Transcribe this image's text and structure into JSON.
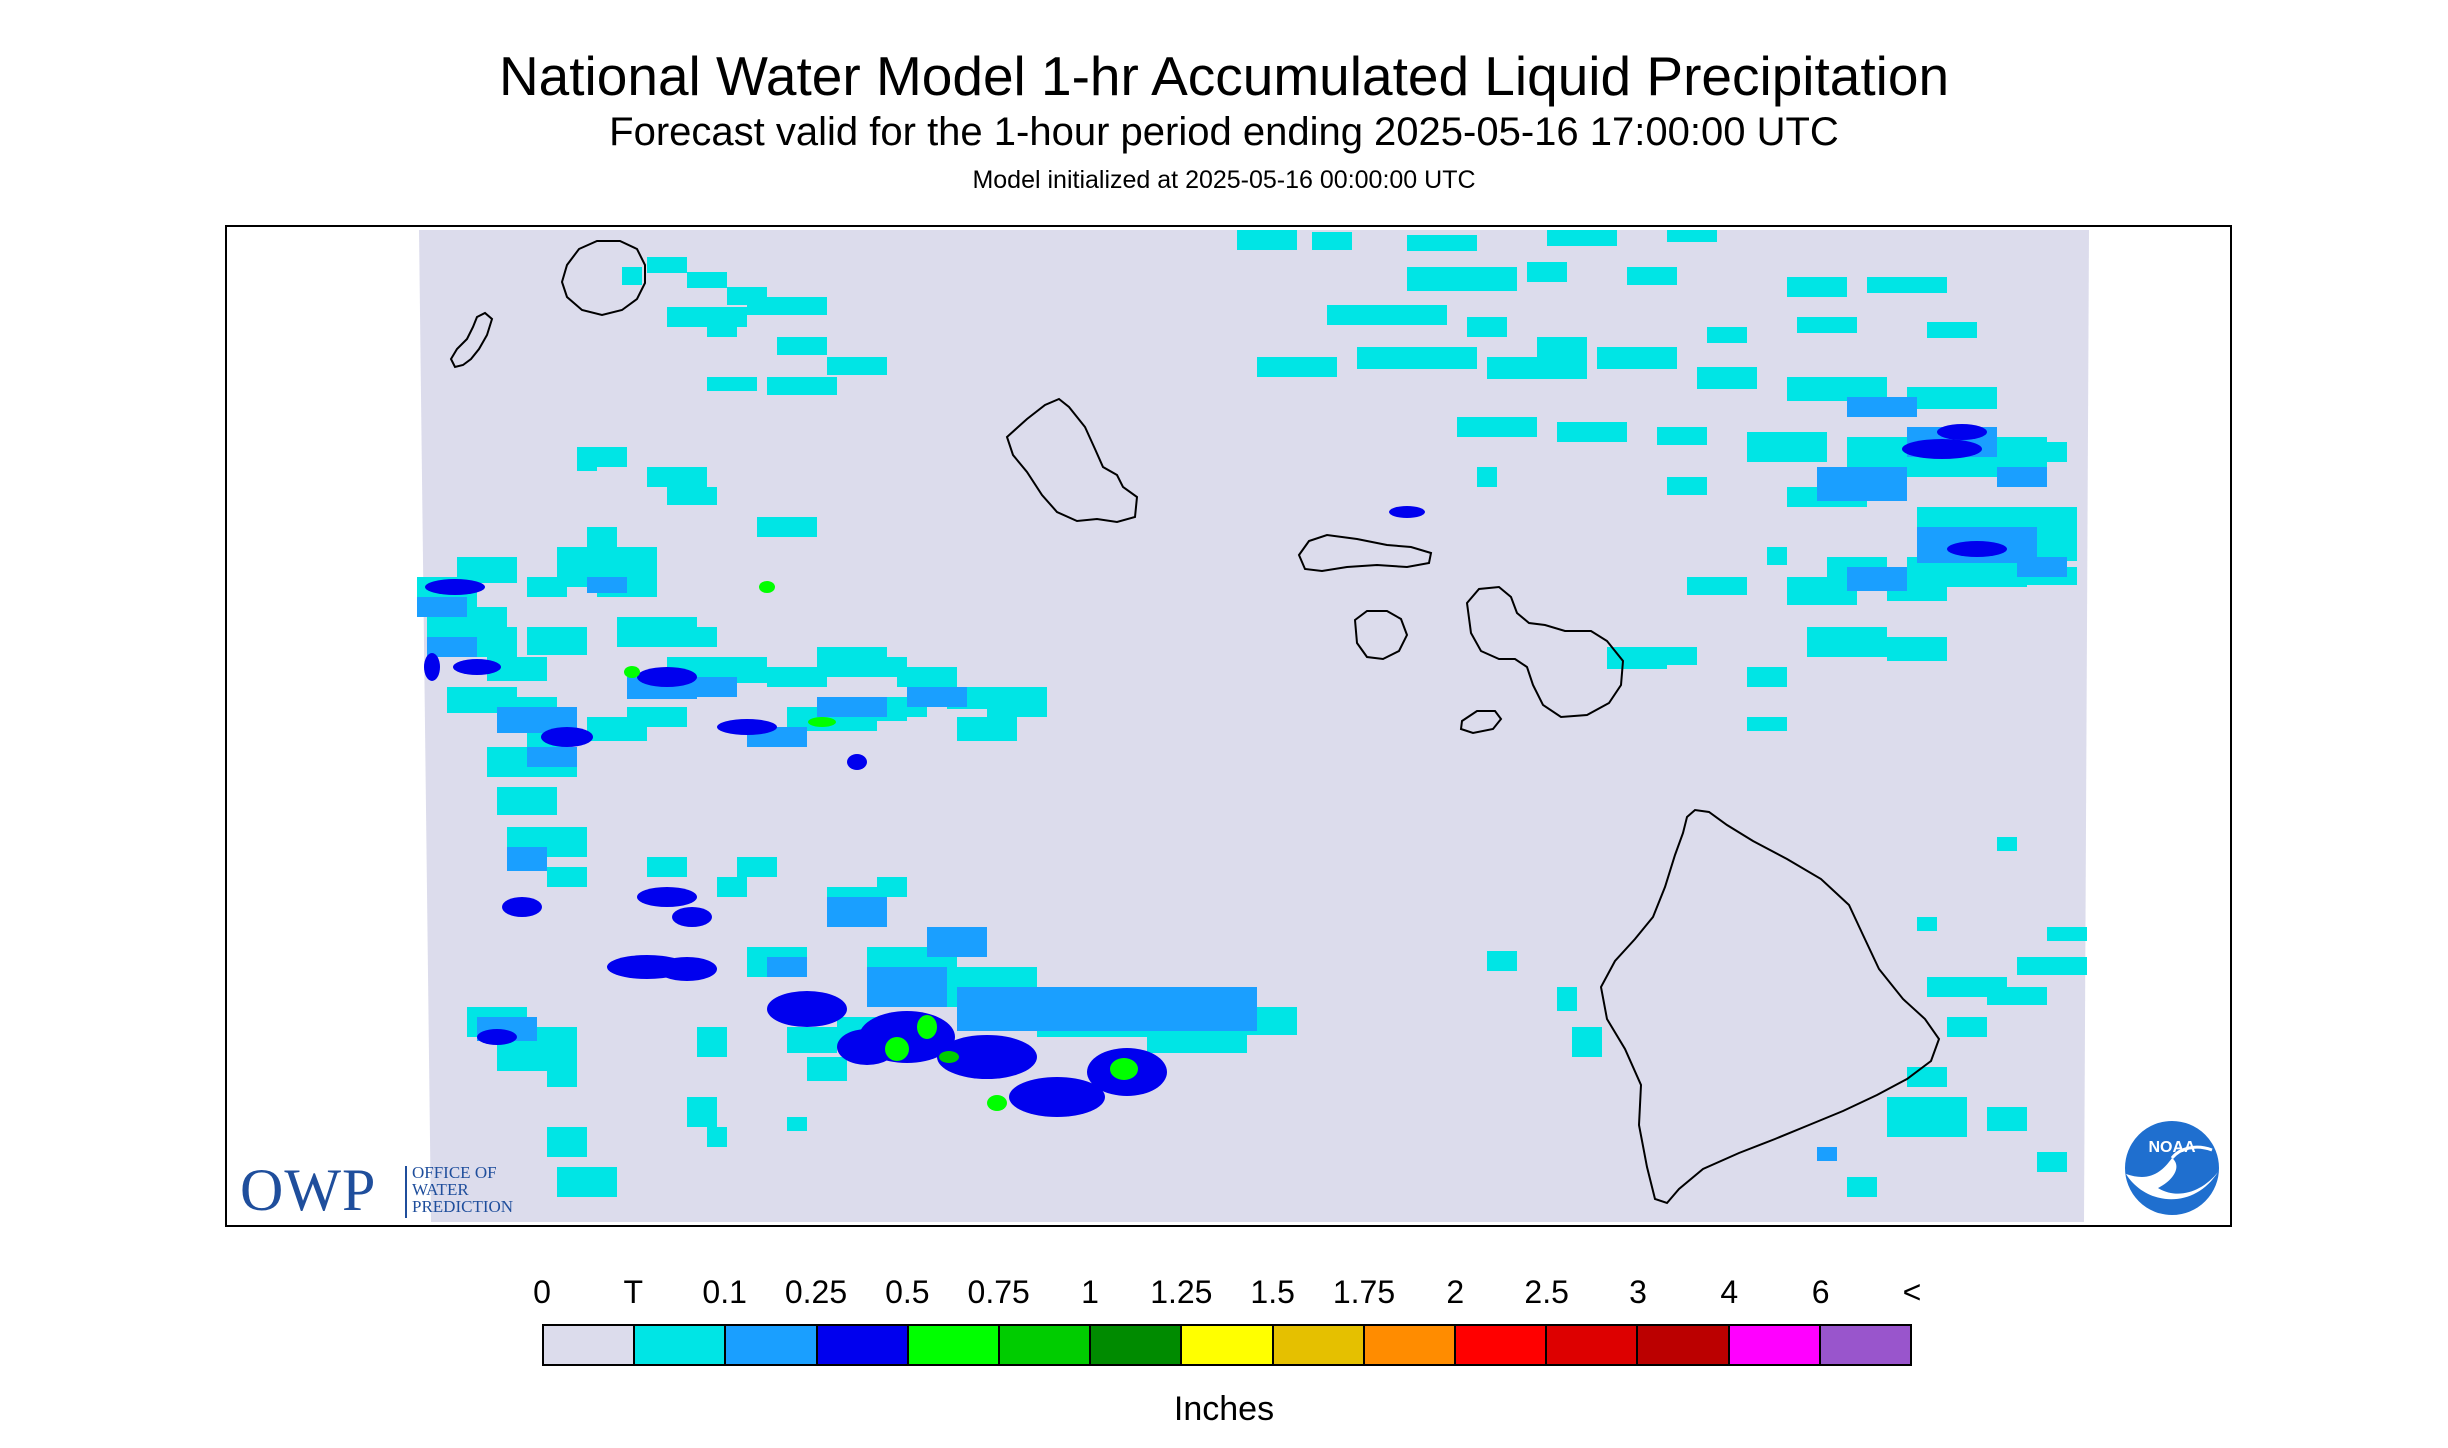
{
  "header": {
    "title": "National Water Model 1-hr Accumulated Liquid Precipitation",
    "subtitle": "Forecast valid for the 1-hour period ending 2025-05-16 17:00:00 UTC",
    "init": "Model initialized at 2025-05-16 00:00:00 UTC"
  },
  "logos": {
    "owp_letters": "OWP",
    "owp_line1": "OFFICE OF",
    "owp_line2": "WATER",
    "owp_line3": "PREDICTION",
    "noaa_text": "NOAA"
  },
  "legend": {
    "units": "Inches",
    "labels": [
      "0",
      "T",
      "0.1",
      "0.25",
      "0.5",
      "0.75",
      "1",
      "1.25",
      "1.5",
      "1.75",
      "2",
      "2.5",
      "3",
      "4",
      "6",
      "<"
    ],
    "colors": [
      "#dcdcec",
      "#00e5e5",
      "#1a9fff",
      "#0000ee",
      "#00ff00",
      "#00cc00",
      "#008b00",
      "#ffff00",
      "#e5c000",
      "#ff8c00",
      "#ff0000",
      "#dd0000",
      "#bb0000",
      "#ff00ff",
      "#9955cc"
    ]
  },
  "map": {
    "background_color": "#dcdcec",
    "coastline_color": "#000000"
  }
}
